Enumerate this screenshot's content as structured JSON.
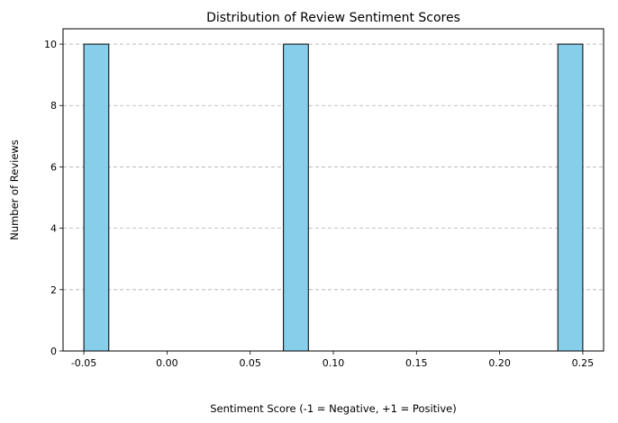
{
  "chart_data": {
    "type": "bar",
    "title": "Distribution of Review Sentiment Scores",
    "xlabel": "Sentiment Score (-1 = Negative, +1 = Positive)",
    "ylabel": "Number of Reviews",
    "xlim": [
      -0.0625,
      0.2625
    ],
    "ylim": [
      0,
      10.5
    ],
    "x_ticks": [
      -0.05,
      0.0,
      0.05,
      0.1,
      0.15,
      0.2,
      0.25
    ],
    "x_tick_labels": [
      "-0.05",
      "0.00",
      "0.05",
      "0.10",
      "0.15",
      "0.20",
      "0.25"
    ],
    "y_ticks": [
      0,
      2,
      4,
      6,
      8,
      10
    ],
    "y_tick_labels": [
      "0",
      "2",
      "4",
      "6",
      "8",
      "10"
    ],
    "grid": "y-axis dashed",
    "legend": "none",
    "bins": [
      {
        "x0": -0.05,
        "x1": -0.035,
        "count": 10
      },
      {
        "x0": 0.07,
        "x1": 0.085,
        "count": 10
      },
      {
        "x0": 0.235,
        "x1": 0.25,
        "count": 10
      }
    ],
    "colors": {
      "bar_fill": "#87ceeb",
      "bar_edge": "#000000",
      "grid": "#b0b0b0"
    }
  }
}
